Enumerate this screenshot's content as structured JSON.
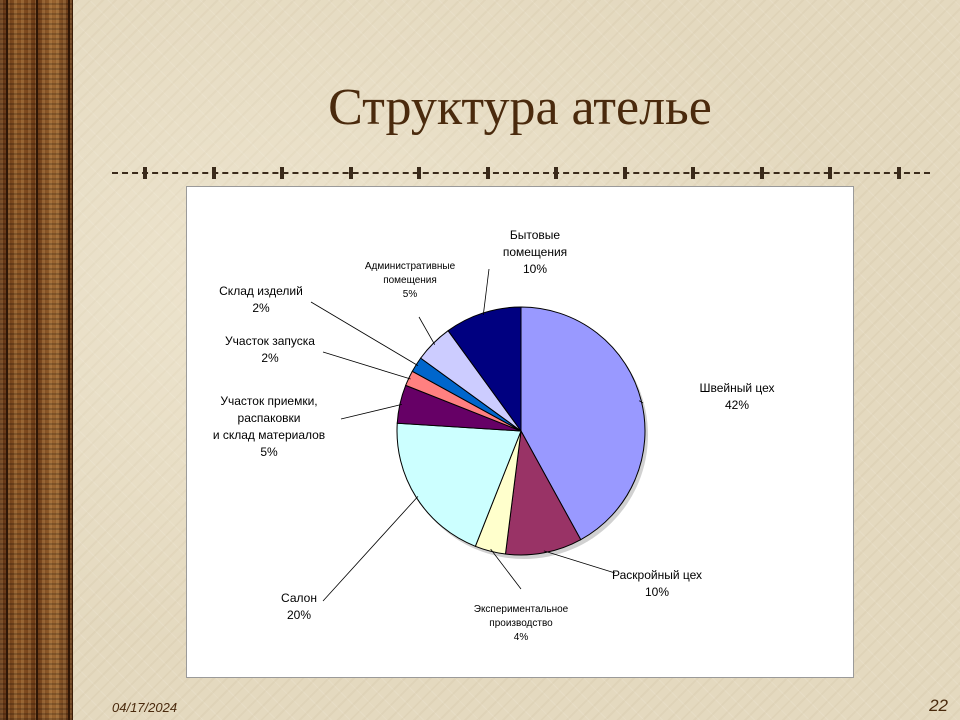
{
  "slide": {
    "title": "Структура ателье",
    "date": "04/17/2024",
    "page_number": "22"
  },
  "colors": {
    "title": "#4a2a0d",
    "side_band": "#7a4a1e",
    "background": "#e4d9bf"
  },
  "chart_data": {
    "type": "pie",
    "title": "",
    "slices": [
      {
        "label": [
          "Швейный цех",
          "42%"
        ],
        "value": 42,
        "color": "#9999ff"
      },
      {
        "label": [
          "Раскройный цех",
          "10%"
        ],
        "value": 10,
        "color": "#993366"
      },
      {
        "label": [
          "Экспериментальное",
          "производство",
          "4%"
        ],
        "value": 4,
        "color": "#ffffcc"
      },
      {
        "label": [
          "Салон",
          "20%"
        ],
        "value": 20,
        "color": "#ccffff"
      },
      {
        "label": [
          "Участок приемки,",
          "распаковки",
          "и склад материалов",
          "5%"
        ],
        "value": 5,
        "color": "#660066"
      },
      {
        "label": [
          "Участок запуска",
          "2%"
        ],
        "value": 2,
        "color": "#ff8080"
      },
      {
        "label": [
          "Склад изделий",
          "2%"
        ],
        "value": 2,
        "color": "#0066cc"
      },
      {
        "label": [
          "Административные",
          "помещения",
          "5%"
        ],
        "value": 5,
        "color": "#ccccff"
      },
      {
        "label": [
          "Бытовые",
          "помещения",
          "10%"
        ],
        "value": 10,
        "color": "#000080"
      }
    ]
  }
}
